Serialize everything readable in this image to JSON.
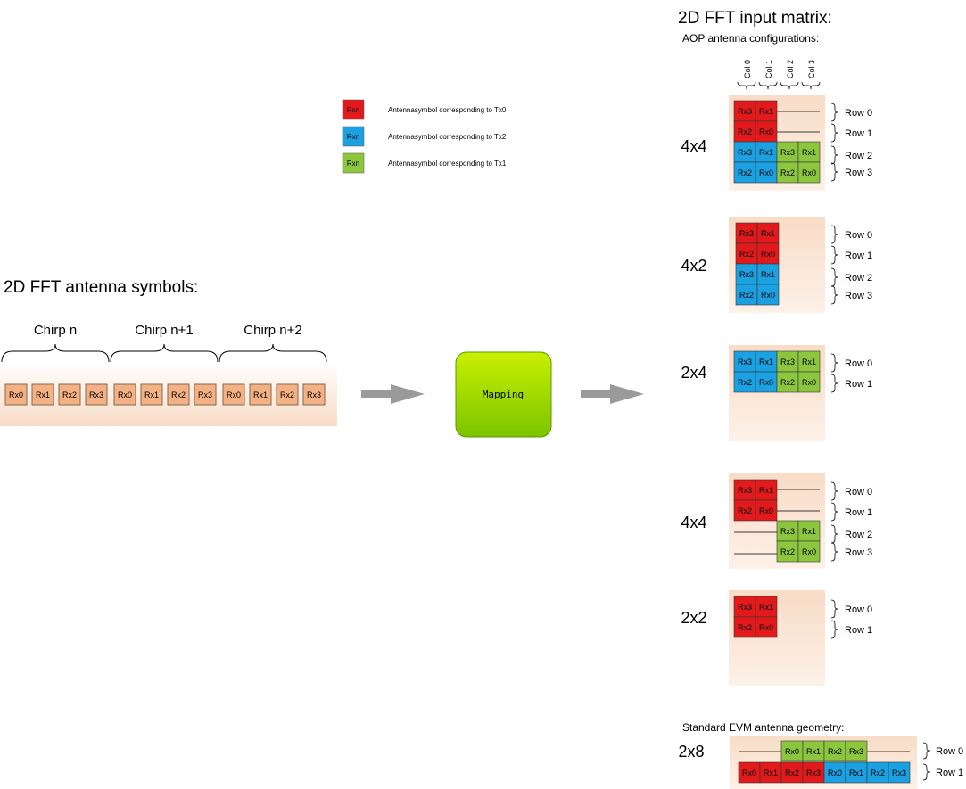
{
  "left_title": "2D FFT antenna symbols:",
  "chirps": [
    {
      "label": "Chirp n",
      "rx": [
        "Rx0",
        "Rx1",
        "Rx2",
        "Rx3"
      ]
    },
    {
      "label": "Chirp n+1",
      "rx": [
        "Rx0",
        "Rx1",
        "Rx2",
        "Rx3"
      ]
    },
    {
      "label": "Chirp n+2",
      "rx": [
        "Rx0",
        "Rx1",
        "Rx2",
        "Rx3"
      ]
    }
  ],
  "mapping_label": "Mapping",
  "legend": [
    {
      "symbol": "Rxn",
      "text": "Antennasymbol corresponding to Tx0",
      "color": "#e31a1c"
    },
    {
      "symbol": "Rxn",
      "text": "Antennasymbol corresponding to Tx2",
      "color": "#1ba1e2"
    },
    {
      "symbol": "Rxn",
      "text": "Antennasymbol corresponding to Tx1",
      "color": "#8cc63f"
    }
  ],
  "right_title": "2D FFT input matrix:",
  "aop_subtitle": "AOP antenna configurations:",
  "columns": [
    "Col 0",
    "Col 1",
    "Col 2",
    "Col 3"
  ],
  "colors": {
    "tx0": "#e31a1c",
    "tx2": "#1ba1e2",
    "tx1": "#8cc63f",
    "bg": "#f8dcc6",
    "symbol": "#f4b183"
  },
  "configs": [
    {
      "label": "4x4",
      "rows": [
        "Row 0",
        "Row 1",
        "Row 2",
        "Row 3"
      ]
    },
    {
      "label": "4x2",
      "rows": [
        "Row 0",
        "Row 1",
        "Row 2",
        "Row 3"
      ]
    },
    {
      "label": "2x4",
      "rows": [
        "Row 0",
        "Row 1"
      ]
    },
    {
      "label": "4x4",
      "rows": [
        "Row 0",
        "Row 1",
        "Row 2",
        "Row 3"
      ]
    },
    {
      "label": "2x2",
      "rows": [
        "Row 0",
        "Row 1"
      ]
    }
  ],
  "evm": {
    "subtitle": "Standard EVM antenna geometry:",
    "label": "2x8",
    "row0": [
      "Rx0",
      "Rx1",
      "Rx2",
      "Rx3"
    ],
    "row1": [
      "Rx0",
      "Rx1",
      "Rx2",
      "Rx3",
      "Rx0",
      "Rx1",
      "Rx2",
      "Rx3"
    ],
    "rows": [
      "Row 0",
      "Row 1"
    ]
  }
}
